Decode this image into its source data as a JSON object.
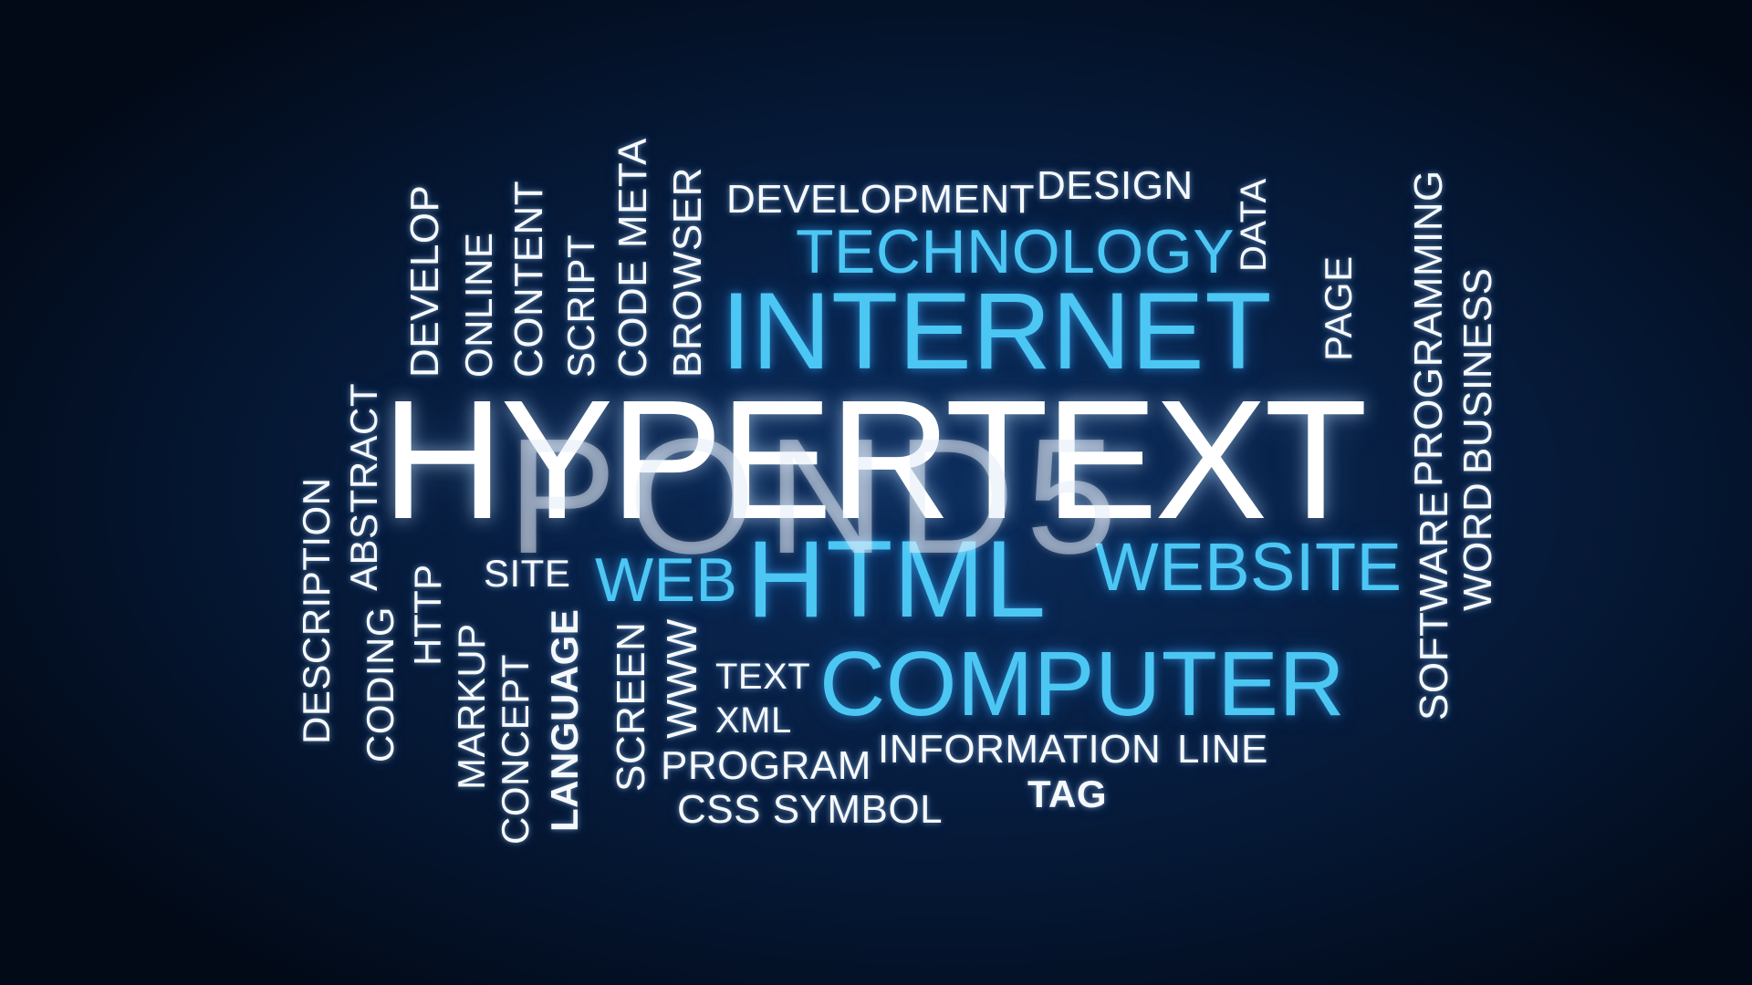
{
  "colors": {
    "background": "#061a3a",
    "word_white": "#f6f9fc",
    "word_blue": "#4cc7f4"
  },
  "words": {
    "hypertext": "HYPERTEXT",
    "watermark": "POND5",
    "internet": "INTERNET",
    "html": "HTML",
    "computer": "COMPUTER",
    "website": "WEBSITE",
    "technology": "TECHNOLOGY",
    "web": "WEB",
    "development": "DEVELOPMENT",
    "design": "DESIGN",
    "data": "DATA",
    "page": "PAGE",
    "programming": "PROGRAMMING",
    "business": "BUSINESS",
    "word": "WORD",
    "software": "SOFTWARE",
    "browser": "BROWSER",
    "code_meta": "CODE META",
    "script": "SCRIPT",
    "content": "CONTENT",
    "online": "ONLINE",
    "develop": "DEVELOP",
    "abstract": "ABSTRACT",
    "description": "DESCRIPTION",
    "coding": "CODING",
    "http": "HTTP",
    "markup": "MARKUP",
    "concept": "CONCEPT",
    "language": "LANGUAGE",
    "site": "SITE",
    "screen": "SCREEN",
    "www": "WWW",
    "text": "TEXT",
    "xml": "XML",
    "program": "PROGRAM",
    "information": "INFORMATION",
    "line": "LINE",
    "tag": "TAG",
    "css_symbol": "CSS SYMBOL"
  }
}
